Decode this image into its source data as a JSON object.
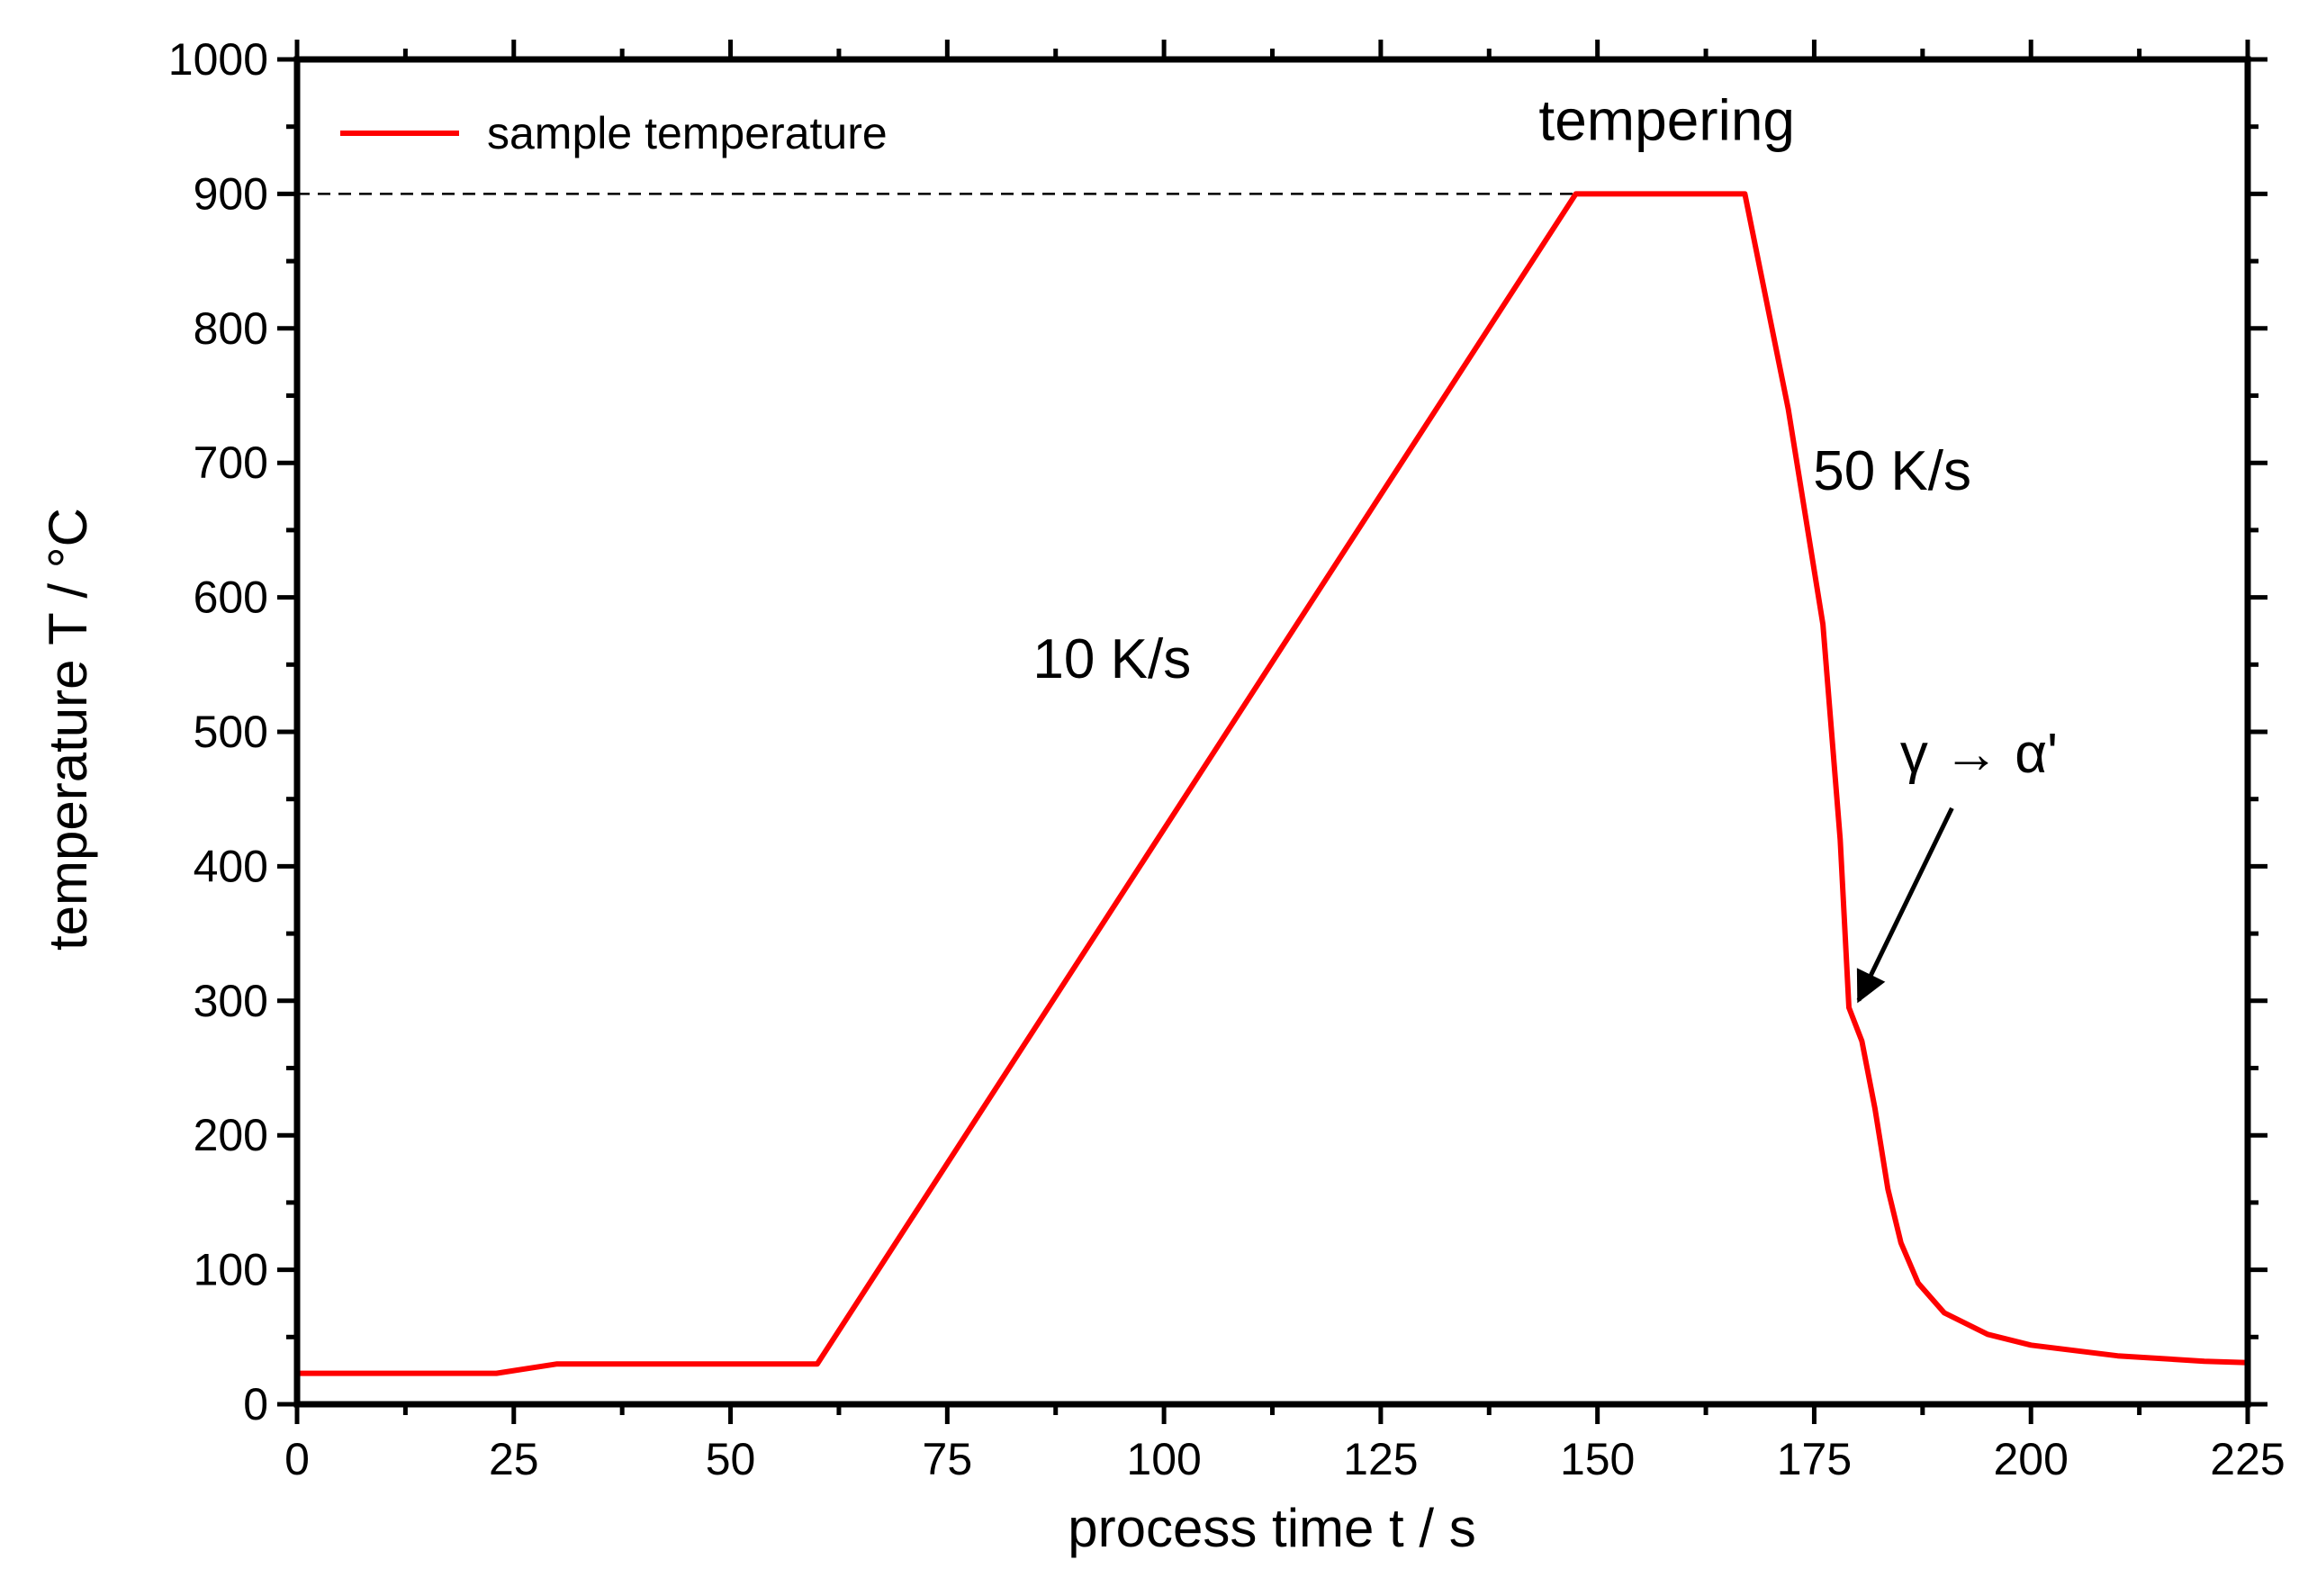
{
  "chart_data": {
    "type": "line",
    "title": "",
    "xlabel": "process time t / s",
    "ylabel": "temperature T / °C",
    "xlim": [
      0,
      225
    ],
    "ylim": [
      0,
      1000
    ],
    "xticks": [
      0,
      25,
      50,
      75,
      100,
      125,
      150,
      175,
      200,
      225
    ],
    "yticks": [
      0,
      100,
      200,
      300,
      400,
      500,
      600,
      700,
      800,
      900,
      1000
    ],
    "grid": false,
    "legend": {
      "position": "top-left",
      "entries": [
        "sample temperature"
      ]
    },
    "series": [
      {
        "name": "sample temperature",
        "color": "#ff0000",
        "points": [
          [
            0,
            23
          ],
          [
            23,
            23
          ],
          [
            30,
            30
          ],
          [
            60,
            30
          ],
          [
            147.5,
            900
          ],
          [
            167,
            900
          ],
          [
            172,
            740
          ],
          [
            176,
            580
          ],
          [
            178,
            420
          ],
          [
            179,
            295
          ],
          [
            180.5,
            270
          ],
          [
            182,
            220
          ],
          [
            183.5,
            160
          ],
          [
            185,
            120
          ],
          [
            187,
            90
          ],
          [
            190,
            68
          ],
          [
            195,
            52
          ],
          [
            200,
            44
          ],
          [
            210,
            36
          ],
          [
            220,
            32
          ],
          [
            225,
            31
          ]
        ]
      }
    ],
    "reference_lines": [
      {
        "y": 900,
        "x_from": 0,
        "x_to": 147.5,
        "style": "dashed",
        "color": "#000000"
      }
    ],
    "annotations": [
      {
        "text": "tempering",
        "x": 158,
        "y": 940
      },
      {
        "text": "10 K/s",
        "x": 94,
        "y": 540
      },
      {
        "text": "50 K/s",
        "x": 184,
        "y": 680
      },
      {
        "text": "γ → α'",
        "x": 194,
        "y": 470,
        "arrow_to": [
          179.3,
          295
        ]
      }
    ]
  }
}
